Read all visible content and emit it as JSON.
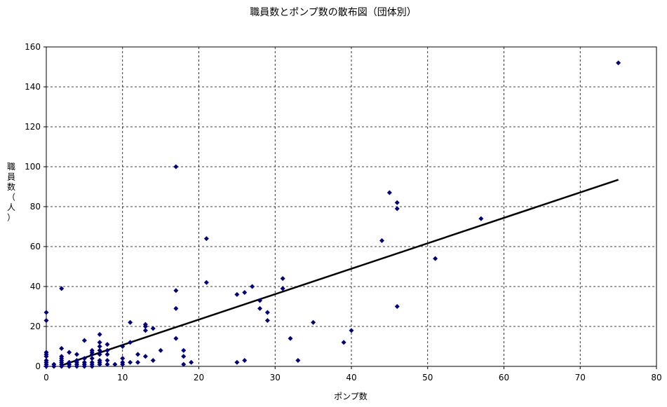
{
  "chart_data": {
    "type": "scatter",
    "title": "職員数とポンプ数の散布図（団体別）",
    "xlabel": "ポンプ数",
    "ylabel": "職員数（人）",
    "xlim": [
      0,
      80
    ],
    "ylim": [
      0,
      160
    ],
    "xticks": [
      "0",
      "10",
      "20",
      "30",
      "40",
      "50",
      "60",
      "70",
      "80"
    ],
    "yticks": [
      "0",
      "20",
      "40",
      "60",
      "80",
      "100",
      "120",
      "140",
      "160"
    ],
    "grid": true,
    "marker_color": "#000080",
    "trend_color": "#000000",
    "trendline": {
      "x": [
        2,
        75
      ],
      "y": [
        0.5,
        93.5
      ]
    },
    "points": [
      [
        0,
        0
      ],
      [
        0,
        1
      ],
      [
        0,
        2
      ],
      [
        0,
        3
      ],
      [
        0,
        5
      ],
      [
        0,
        6
      ],
      [
        0,
        7
      ],
      [
        0,
        23
      ],
      [
        0,
        27
      ],
      [
        1,
        0
      ],
      [
        1,
        1
      ],
      [
        2,
        0
      ],
      [
        2,
        1
      ],
      [
        2,
        2
      ],
      [
        2,
        3
      ],
      [
        2,
        4
      ],
      [
        2,
        5
      ],
      [
        2,
        9
      ],
      [
        2,
        39
      ],
      [
        3,
        0
      ],
      [
        3,
        1
      ],
      [
        3,
        2
      ],
      [
        3,
        7
      ],
      [
        4,
        0
      ],
      [
        4,
        1
      ],
      [
        4,
        2
      ],
      [
        4,
        3
      ],
      [
        4,
        6
      ],
      [
        5,
        0
      ],
      [
        5,
        1
      ],
      [
        5,
        2
      ],
      [
        5,
        4
      ],
      [
        5,
        13
      ],
      [
        6,
        0
      ],
      [
        6,
        1
      ],
      [
        6,
        2
      ],
      [
        6,
        4
      ],
      [
        6,
        6
      ],
      [
        6,
        7
      ],
      [
        6,
        8
      ],
      [
        7,
        1
      ],
      [
        7,
        2
      ],
      [
        7,
        3
      ],
      [
        7,
        6
      ],
      [
        7,
        8
      ],
      [
        7,
        10
      ],
      [
        7,
        12
      ],
      [
        7,
        16
      ],
      [
        8,
        1
      ],
      [
        8,
        3
      ],
      [
        8,
        6
      ],
      [
        8,
        8
      ],
      [
        8,
        11
      ],
      [
        9,
        1
      ],
      [
        10,
        1
      ],
      [
        10,
        2
      ],
      [
        10,
        4
      ],
      [
        10,
        10
      ],
      [
        11,
        2
      ],
      [
        11,
        12
      ],
      [
        11,
        22
      ],
      [
        12,
        2
      ],
      [
        12,
        6
      ],
      [
        13,
        5
      ],
      [
        13,
        18
      ],
      [
        13,
        20
      ],
      [
        13,
        21
      ],
      [
        14,
        3
      ],
      [
        14,
        19
      ],
      [
        15,
        8
      ],
      [
        17,
        14
      ],
      [
        17,
        29
      ],
      [
        17,
        38
      ],
      [
        17,
        100
      ],
      [
        18,
        1
      ],
      [
        18,
        5
      ],
      [
        18,
        8
      ],
      [
        19,
        2
      ],
      [
        21,
        42
      ],
      [
        21,
        64
      ],
      [
        25,
        2
      ],
      [
        25,
        36
      ],
      [
        26,
        3
      ],
      [
        26,
        37
      ],
      [
        27,
        40
      ],
      [
        28,
        29
      ],
      [
        28,
        33
      ],
      [
        29,
        23
      ],
      [
        29,
        27
      ],
      [
        31,
        39
      ],
      [
        31,
        44
      ],
      [
        32,
        14
      ],
      [
        33,
        3
      ],
      [
        35,
        22
      ],
      [
        39,
        12
      ],
      [
        40,
        18
      ],
      [
        44,
        63
      ],
      [
        45,
        87
      ],
      [
        46,
        30
      ],
      [
        46,
        79
      ],
      [
        46,
        82
      ],
      [
        51,
        54
      ],
      [
        57,
        74
      ],
      [
        75,
        152
      ]
    ]
  }
}
